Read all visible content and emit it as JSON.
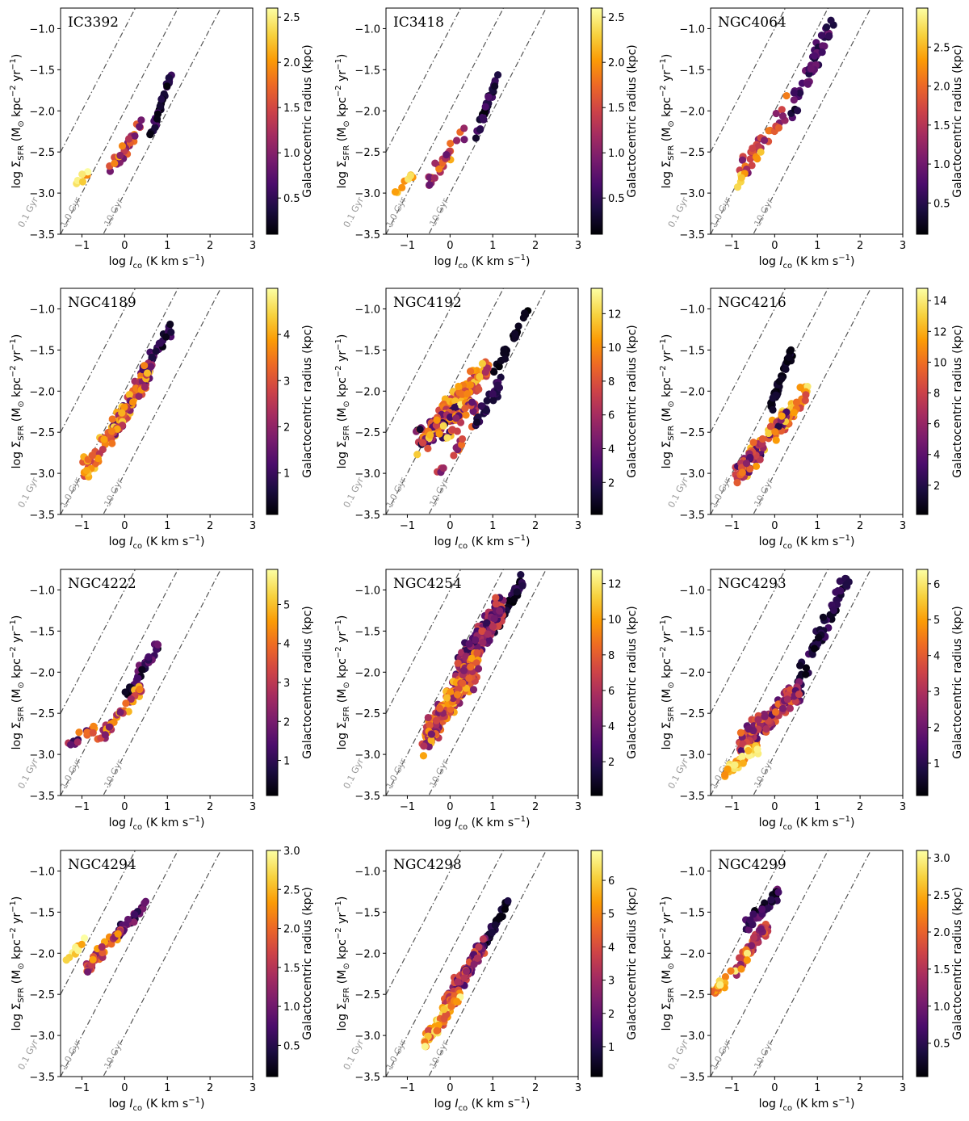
{
  "figure": {
    "xlabel": "log I_co (K km s^-1)",
    "ylabel": "log Σ_SFR (M_⊙ kpc^-2 yr^-1)",
    "colorbar_label": "Galactocentric radius (kpc)",
    "depletion_lines": [
      {
        "label": "0.1 Gyr",
        "offset": -1.0
      },
      {
        "label": "1.0 Gyr",
        "offset": -2.0
      },
      {
        "label": "10 Gyr",
        "offset": -3.0
      }
    ],
    "colormap": [
      "#000004",
      "#1b0c41",
      "#4a0c6b",
      "#781c6d",
      "#a52c60",
      "#cf4446",
      "#ed6925",
      "#fb9b06",
      "#f7d13d",
      "#fcffa4"
    ]
  },
  "chart_data": [
    {
      "type": "scatter",
      "title": "IC3392",
      "xlim": [
        -1.5,
        3
      ],
      "ylim": [
        -3.5,
        -0.75
      ],
      "xticks": [
        -1,
        0,
        1,
        2,
        3
      ],
      "yticks": [
        -3.5,
        -3.0,
        -2.5,
        -2.0,
        -1.5,
        -1.0
      ],
      "colorbar": {
        "min": 0.1,
        "max": 2.6,
        "ticks": [
          0.5,
          1.0,
          1.5,
          2.0,
          2.5
        ]
      },
      "clusters": [
        {
          "x": [
            0.6,
            1.1
          ],
          "y": [
            -2.3,
            -1.55
          ],
          "r": [
            0.1,
            0.7
          ],
          "n": 35,
          "spread": 0.12
        },
        {
          "x": [
            -0.5,
            0.4
          ],
          "y": [
            -2.9,
            -2.15
          ],
          "r": [
            0.8,
            2.2
          ],
          "n": 30,
          "spread": 0.15
        },
        {
          "x": [
            -1.3,
            -0.8
          ],
          "y": [
            -3.0,
            -2.75
          ],
          "r": [
            1.8,
            2.6
          ],
          "n": 8,
          "spread": 0.08
        }
      ]
    },
    {
      "type": "scatter",
      "title": "IC3418",
      "xlim": [
        -1.5,
        3
      ],
      "ylim": [
        -3.5,
        -0.75
      ],
      "xticks": [
        -1,
        0,
        1,
        2,
        3
      ],
      "yticks": [
        -3.5,
        -3.0,
        -2.5,
        -2.0,
        -1.5,
        -1.0
      ],
      "colorbar": {
        "min": 0.1,
        "max": 2.6,
        "ticks": [
          0.5,
          1.0,
          1.5,
          2.0,
          2.5
        ]
      },
      "clusters": [
        {
          "x": [
            0.6,
            1.1
          ],
          "y": [
            -2.3,
            -1.55
          ],
          "r": [
            0.1,
            0.7
          ],
          "n": 35,
          "spread": 0.12
        },
        {
          "x": [
            -0.5,
            0.4
          ],
          "y": [
            -2.9,
            -2.15
          ],
          "r": [
            0.8,
            2.2
          ],
          "n": 30,
          "spread": 0.15
        },
        {
          "x": [
            -1.3,
            -0.8
          ],
          "y": [
            -3.0,
            -2.75
          ],
          "r": [
            1.8,
            2.6
          ],
          "n": 8,
          "spread": 0.08
        }
      ]
    },
    {
      "type": "scatter",
      "title": "NGC4064",
      "xlim": [
        -1.5,
        3
      ],
      "ylim": [
        -3.5,
        -0.75
      ],
      "xticks": [
        -1,
        0,
        1,
        2,
        3
      ],
      "yticks": [
        -3.5,
        -3.0,
        -2.5,
        -2.0,
        -1.5,
        -1.0
      ],
      "colorbar": {
        "min": 0.1,
        "max": 3.0,
        "ticks": [
          0.5,
          1.0,
          1.5,
          2.0,
          2.5
        ]
      },
      "clusters": [
        {
          "x": [
            0.3,
            1.35
          ],
          "y": [
            -2.1,
            -0.9
          ],
          "r": [
            0.2,
            1.0
          ],
          "n": 45,
          "spread": 0.2
        },
        {
          "x": [
            -0.8,
            0.3
          ],
          "y": [
            -2.7,
            -2.0
          ],
          "r": [
            1.0,
            2.2
          ],
          "n": 35,
          "spread": 0.22
        },
        {
          "x": [
            -0.9,
            -0.3
          ],
          "y": [
            -2.9,
            -2.5
          ],
          "r": [
            2.2,
            3.0
          ],
          "n": 8,
          "spread": 0.1
        }
      ]
    },
    {
      "type": "scatter",
      "title": "NGC4189",
      "xlim": [
        -1.5,
        3
      ],
      "ylim": [
        -3.5,
        -0.75
      ],
      "xticks": [
        -1,
        0,
        1,
        2,
        3
      ],
      "yticks": [
        -3.5,
        -3.0,
        -2.5,
        -2.0,
        -1.5,
        -1.0
      ],
      "colorbar": {
        "min": 0.1,
        "max": 5.0,
        "ticks": [
          1,
          2,
          3,
          4
        ]
      },
      "clusters": [
        {
          "x": [
            0.3,
            1.1
          ],
          "y": [
            -1.9,
            -1.2
          ],
          "r": [
            0.2,
            1.5
          ],
          "n": 30,
          "spread": 0.12
        },
        {
          "x": [
            -0.3,
            0.6
          ],
          "y": [
            -2.5,
            -1.7
          ],
          "r": [
            1.0,
            4.5
          ],
          "n": 110,
          "spread": 0.2
        },
        {
          "x": [
            -1.0,
            0.0
          ],
          "y": [
            -3.0,
            -2.3
          ],
          "r": [
            2.5,
            4.5
          ],
          "n": 50,
          "spread": 0.2
        }
      ]
    },
    {
      "type": "scatter",
      "title": "NGC4192",
      "xlim": [
        -1.5,
        3
      ],
      "ylim": [
        -3.5,
        -0.75
      ],
      "xticks": [
        -1,
        0,
        1,
        2,
        3
      ],
      "yticks": [
        -3.5,
        -3.0,
        -2.5,
        -2.0,
        -1.5,
        -1.0
      ],
      "colorbar": {
        "min": 0.1,
        "max": 13.5,
        "ticks": [
          2,
          4,
          6,
          8,
          10,
          12
        ]
      },
      "clusters": [
        {
          "x": [
            1.0,
            1.85
          ],
          "y": [
            -1.8,
            -1.0
          ],
          "r": [
            0.1,
            1.0
          ],
          "n": 25,
          "spread": 0.08
        },
        {
          "x": [
            -0.2,
            0.9
          ],
          "y": [
            -2.3,
            -1.7
          ],
          "r": [
            6,
            12
          ],
          "n": 110,
          "spread": 0.2
        },
        {
          "x": [
            -0.8,
            0.6
          ],
          "y": [
            -2.6,
            -2.2
          ],
          "r": [
            1,
            13
          ],
          "n": 110,
          "spread": 0.25
        },
        {
          "x": [
            0.6,
            1.2
          ],
          "y": [
            -2.4,
            -1.9
          ],
          "r": [
            1,
            3
          ],
          "n": 30,
          "spread": 0.15
        },
        {
          "x": [
            -0.3,
            0.3
          ],
          "y": [
            -3.0,
            -2.6
          ],
          "r": [
            4,
            10
          ],
          "n": 15,
          "spread": 0.12
        }
      ]
    },
    {
      "type": "scatter",
      "title": "NGC4216",
      "xlim": [
        -1.5,
        3
      ],
      "ylim": [
        -3.5,
        -0.75
      ],
      "xticks": [
        -1,
        0,
        1,
        2,
        3
      ],
      "yticks": [
        -3.5,
        -3.0,
        -2.5,
        -2.0,
        -1.5,
        -1.0
      ],
      "colorbar": {
        "min": 0.1,
        "max": 14.8,
        "ticks": [
          2,
          4,
          6,
          8,
          10,
          12,
          14
        ]
      },
      "clusters": [
        {
          "x": [
            -0.1,
            0.4
          ],
          "y": [
            -2.2,
            -1.5
          ],
          "r": [
            0.1,
            1.5
          ],
          "n": 45,
          "spread": 0.1
        },
        {
          "x": [
            0.0,
            0.75
          ],
          "y": [
            -2.5,
            -2.0
          ],
          "r": [
            8,
            14
          ],
          "n": 70,
          "spread": 0.15
        },
        {
          "x": [
            -0.9,
            0.3
          ],
          "y": [
            -3.05,
            -2.3
          ],
          "r": [
            2,
            14
          ],
          "n": 90,
          "spread": 0.2
        }
      ]
    },
    {
      "type": "scatter",
      "title": "NGC4222",
      "xlim": [
        -1.5,
        3
      ],
      "ylim": [
        -3.5,
        -0.75
      ],
      "xticks": [
        -1,
        0,
        1,
        2,
        3
      ],
      "yticks": [
        -3.5,
        -3.0,
        -2.5,
        -2.0,
        -1.5,
        -1.0
      ],
      "colorbar": {
        "min": 0.1,
        "max": 5.9,
        "ticks": [
          1,
          2,
          3,
          4,
          5
        ]
      },
      "clusters": [
        {
          "x": [
            0.0,
            0.8
          ],
          "y": [
            -2.3,
            -1.65
          ],
          "r": [
            0.2,
            2.0
          ],
          "n": 40,
          "spread": 0.1
        },
        {
          "x": [
            -0.6,
            0.4
          ],
          "y": [
            -2.8,
            -2.2
          ],
          "r": [
            1.5,
            5.0
          ],
          "n": 45,
          "spread": 0.13
        },
        {
          "x": [
            -1.4,
            -0.6
          ],
          "y": [
            -2.95,
            -2.6
          ],
          "r": [
            1.0,
            5.5
          ],
          "n": 15,
          "spread": 0.1
        }
      ]
    },
    {
      "type": "scatter",
      "title": "NGC4254",
      "xlim": [
        -1.5,
        3
      ],
      "ylim": [
        -3.5,
        -0.75
      ],
      "xticks": [
        -1,
        0,
        1,
        2,
        3
      ],
      "yticks": [
        -3.5,
        -3.0,
        -2.5,
        -2.0,
        -1.5,
        -1.0
      ],
      "colorbar": {
        "min": 0.1,
        "max": 12.8,
        "ticks": [
          2,
          4,
          6,
          8,
          10,
          12
        ]
      },
      "clusters": [
        {
          "x": [
            1.0,
            1.7
          ],
          "y": [
            -1.5,
            -0.9
          ],
          "r": [
            0.1,
            2.5
          ],
          "n": 60,
          "spread": 0.12
        },
        {
          "x": [
            0.2,
            1.2
          ],
          "y": [
            -2.0,
            -1.2
          ],
          "r": [
            2,
            8
          ],
          "n": 200,
          "spread": 0.25
        },
        {
          "x": [
            -0.6,
            0.6
          ],
          "y": [
            -2.85,
            -1.9
          ],
          "r": [
            4,
            11
          ],
          "n": 260,
          "spread": 0.25
        }
      ]
    },
    {
      "type": "scatter",
      "title": "NGC4293",
      "xlim": [
        -1.5,
        3
      ],
      "ylim": [
        -3.5,
        -0.75
      ],
      "xticks": [
        -1,
        0,
        1,
        2,
        3
      ],
      "yticks": [
        -3.5,
        -3.0,
        -2.5,
        -2.0,
        -1.5,
        -1.0
      ],
      "colorbar": {
        "min": 0.1,
        "max": 6.4,
        "ticks": [
          1,
          2,
          3,
          4,
          5,
          6
        ]
      },
      "clusters": [
        {
          "x": [
            0.5,
            1.8
          ],
          "y": [
            -2.2,
            -0.75
          ],
          "r": [
            0.2,
            1.5
          ],
          "n": 60,
          "spread": 0.22
        },
        {
          "x": [
            -0.8,
            0.6
          ],
          "y": [
            -2.9,
            -2.2
          ],
          "r": [
            1.5,
            4.5
          ],
          "n": 140,
          "spread": 0.2
        },
        {
          "x": [
            -1.2,
            -0.4
          ],
          "y": [
            -3.25,
            -2.9
          ],
          "r": [
            4.5,
            6.4
          ],
          "n": 35,
          "spread": 0.12
        }
      ]
    },
    {
      "type": "scatter",
      "title": "NGC4294",
      "xlim": [
        -1.5,
        3
      ],
      "ylim": [
        -3.5,
        -0.75
      ],
      "xticks": [
        -1,
        0,
        1,
        2,
        3
      ],
      "yticks": [
        -3.5,
        -3.0,
        -2.5,
        -2.0,
        -1.5,
        -1.0
      ],
      "colorbar": {
        "min": 0.1,
        "max": 3.0,
        "ticks": [
          0.5,
          1.0,
          1.5,
          2.0,
          2.5,
          3.0
        ]
      },
      "clusters": [
        {
          "x": [
            -0.3,
            0.5
          ],
          "y": [
            -1.85,
            -1.4
          ],
          "r": [
            0.2,
            1.2
          ],
          "n": 40,
          "spread": 0.1
        },
        {
          "x": [
            -0.9,
            -0.1
          ],
          "y": [
            -2.2,
            -1.7
          ],
          "r": [
            1.0,
            2.5
          ],
          "n": 40,
          "spread": 0.15
        },
        {
          "x": [
            -1.4,
            -0.9
          ],
          "y": [
            -2.1,
            -1.8
          ],
          "r": [
            2.3,
            3.0
          ],
          "n": 12,
          "spread": 0.08
        }
      ]
    },
    {
      "type": "scatter",
      "title": "NGC4298",
      "xlim": [
        -1.5,
        3
      ],
      "ylim": [
        -3.5,
        -0.75
      ],
      "xticks": [
        -1,
        0,
        1,
        2,
        3
      ],
      "yticks": [
        -3.5,
        -3.0,
        -2.5,
        -2.0,
        -1.5,
        -1.0
      ],
      "colorbar": {
        "min": 0.1,
        "max": 6.9,
        "ticks": [
          1,
          2,
          3,
          4,
          5,
          6
        ]
      },
      "clusters": [
        {
          "x": [
            0.7,
            1.35
          ],
          "y": [
            -2.0,
            -1.35
          ],
          "r": [
            0.1,
            1.2
          ],
          "n": 40,
          "spread": 0.08
        },
        {
          "x": [
            -0.1,
            0.8
          ],
          "y": [
            -2.6,
            -1.9
          ],
          "r": [
            1.5,
            4.5
          ],
          "n": 120,
          "spread": 0.15
        },
        {
          "x": [
            -0.6,
            0.2
          ],
          "y": [
            -3.1,
            -2.5
          ],
          "r": [
            3.5,
            6.9
          ],
          "n": 90,
          "spread": 0.13
        }
      ]
    },
    {
      "type": "scatter",
      "title": "NGC4299",
      "xlim": [
        -1.5,
        3
      ],
      "ylim": [
        -3.5,
        -0.75
      ],
      "xticks": [
        -1,
        0,
        1,
        2,
        3
      ],
      "yticks": [
        -3.5,
        -3.0,
        -2.5,
        -2.0,
        -1.5,
        -1.0
      ],
      "colorbar": {
        "min": 0.05,
        "max": 3.1,
        "ticks": [
          0.5,
          1.0,
          1.5,
          2.0,
          2.5,
          3.0
        ]
      },
      "clusters": [
        {
          "x": [
            -0.7,
            0.1
          ],
          "y": [
            -1.7,
            -1.25
          ],
          "r": [
            0.05,
            1.0
          ],
          "n": 40,
          "spread": 0.12
        },
        {
          "x": [
            -0.9,
            -0.1
          ],
          "y": [
            -2.2,
            -1.6
          ],
          "r": [
            1.0,
            2.2
          ],
          "n": 50,
          "spread": 0.15
        },
        {
          "x": [
            -1.5,
            -0.6
          ],
          "y": [
            -2.5,
            -2.0
          ],
          "r": [
            2.0,
            3.0
          ],
          "n": 20,
          "spread": 0.12
        }
      ]
    }
  ]
}
